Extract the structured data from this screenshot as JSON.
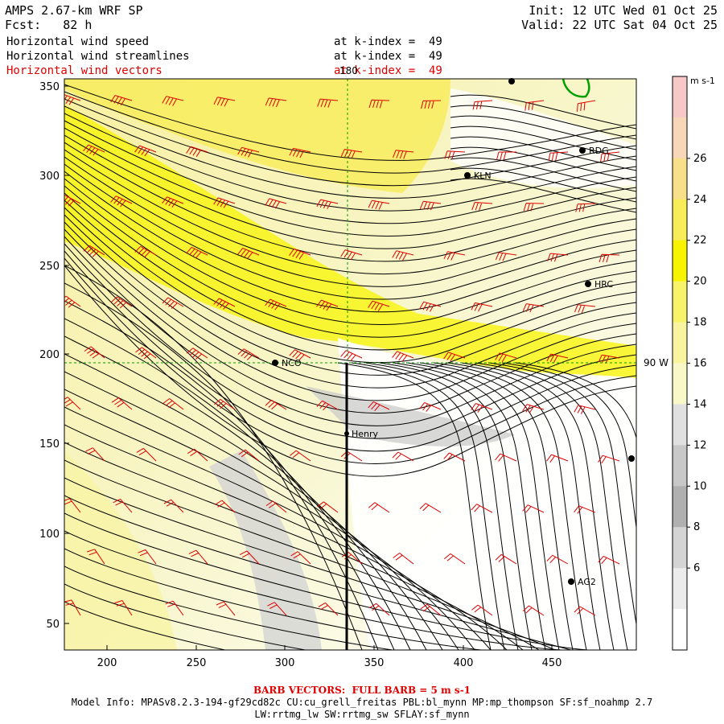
{
  "header": {
    "model": "AMPS 2.67-km WRF SP",
    "forecast": "Fcst:   82 h",
    "init": "Init: 12 UTC Wed 01 Oct 25",
    "valid": "Valid: 22 UTC Sat 04 Oct 25"
  },
  "fields": [
    {
      "label": "Horizontal wind speed",
      "level": "at k-index =  49"
    },
    {
      "label": "Horizontal wind streamlines",
      "level": "at k-index =  49"
    },
    {
      "label": "Horizontal wind vectors",
      "level": "at k-index =  49"
    }
  ],
  "map": {
    "x_ticks": [
      "200",
      "250",
      "300",
      "350",
      "400",
      "450"
    ],
    "y_ticks": [
      "50",
      "100",
      "150",
      "200",
      "250",
      "300",
      "350"
    ],
    "meridian_label": "180",
    "parallel_label": "90 W",
    "stations": [
      {
        "name": "RDG"
      },
      {
        "name": "KLN"
      },
      {
        "name": "HRC"
      },
      {
        "name": "NCO"
      },
      {
        "name": "Henry"
      },
      {
        "name": "AG2"
      }
    ]
  },
  "colorbar": {
    "units": "m s-1",
    "labels": [
      "26",
      "24",
      "22",
      "20",
      "18",
      "16",
      "14",
      "12",
      "10",
      "8",
      "6"
    ],
    "colors": [
      "#f7c8c8",
      "#f8d6b8",
      "#f8e08a",
      "#f8ec58",
      "#f8f400",
      "#f8f46a",
      "#f8f4a0",
      "#f8f8c8",
      "#e0e0e0",
      "#c8c8c8",
      "#b0b0b0",
      "#d4d4d4",
      "#ececec",
      "#ffffff"
    ]
  },
  "footer": {
    "barb": "BARB VECTORS:  FULL BARB = 5 m s-1",
    "model_info": "Model Info: MPASv8.2.3-194-gf29cd82c CU:cu_grell_freitas PBL:bl_mynn MP:mp_thompson SF:sf_noahmp 2.7",
    "model_info2": "LW:rrtmg_lw SW:rrtmg_sw SFLAY:sf_mynn"
  }
}
